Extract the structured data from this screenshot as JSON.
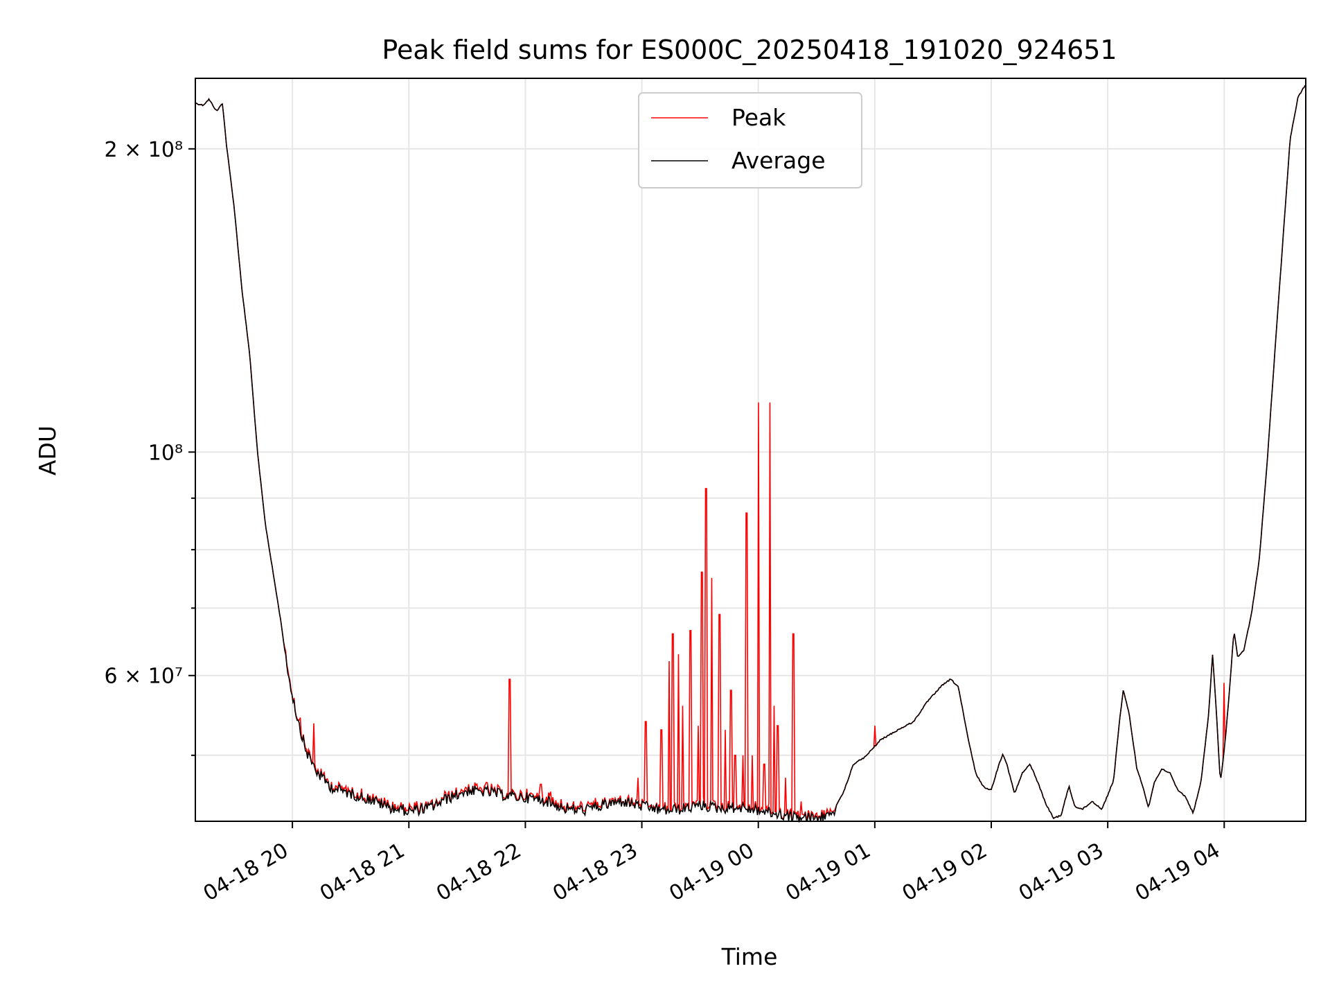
{
  "chart_data": {
    "type": "line",
    "title": "Peak field sums for ES000C_20250418_191020_924651",
    "xlabel": "Time",
    "ylabel": "ADU",
    "y_scale": "log",
    "ylim": [
      43000000,
      235000000
    ],
    "xlim": [
      "2025-04-18 19:10",
      "2025-04-19 04:42"
    ],
    "grid": true,
    "legend_position": "top-center",
    "x_ticks": [
      {
        "t": "2025-04-18 20:00",
        "label": "04-18 20"
      },
      {
        "t": "2025-04-18 21:00",
        "label": "04-18 21"
      },
      {
        "t": "2025-04-18 22:00",
        "label": "04-18 22"
      },
      {
        "t": "2025-04-18 23:00",
        "label": "04-18 23"
      },
      {
        "t": "2025-04-19 00:00",
        "label": "04-19 00"
      },
      {
        "t": "2025-04-19 01:00",
        "label": "04-19 01"
      },
      {
        "t": "2025-04-19 02:00",
        "label": "04-19 02"
      },
      {
        "t": "2025-04-19 03:00",
        "label": "04-19 03"
      },
      {
        "t": "2025-04-19 04:00",
        "label": "04-19 04"
      }
    ],
    "y_ticks": [
      {
        "v": 200000000,
        "label": "2 × 10⁸"
      },
      {
        "v": 100000000,
        "label": "10⁸"
      },
      {
        "v": 60000000,
        "label": "6 × 10⁷"
      }
    ],
    "y_minor_ticks": [
      50000000,
      70000000,
      80000000,
      90000000
    ],
    "series": [
      {
        "name": "Average",
        "color": "#000000",
        "points": [
          [
            "2025-04-18 19:10",
            222000000
          ],
          [
            "2025-04-18 19:14",
            221000000
          ],
          [
            "2025-04-18 19:17",
            224000000
          ],
          [
            "2025-04-18 19:21",
            218000000
          ],
          [
            "2025-04-18 19:24",
            222000000
          ],
          [
            "2025-04-18 19:26",
            202000000
          ],
          [
            "2025-04-18 19:30",
            175000000
          ],
          [
            "2025-04-18 19:34",
            145000000
          ],
          [
            "2025-04-18 19:38",
            125000000
          ],
          [
            "2025-04-18 19:42",
            100000000
          ],
          [
            "2025-04-18 19:46",
            85000000
          ],
          [
            "2025-04-18 19:50",
            76000000
          ],
          [
            "2025-04-18 19:54",
            68000000
          ],
          [
            "2025-04-18 19:58",
            60000000
          ],
          [
            "2025-04-18 20:02",
            55000000
          ],
          [
            "2025-04-18 20:07",
            50500000
          ],
          [
            "2025-04-18 20:13",
            48000000
          ],
          [
            "2025-04-18 20:20",
            46500000
          ],
          [
            "2025-04-18 20:30",
            45800000
          ],
          [
            "2025-04-18 20:40",
            45200000
          ],
          [
            "2025-04-18 20:50",
            44400000
          ],
          [
            "2025-04-18 21:00",
            44000000
          ],
          [
            "2025-04-18 21:10",
            44300000
          ],
          [
            "2025-04-18 21:20",
            45300000
          ],
          [
            "2025-04-18 21:30",
            46100000
          ],
          [
            "2025-04-18 21:40",
            46000000
          ],
          [
            "2025-04-18 21:50",
            45600000
          ],
          [
            "2025-04-18 22:00",
            45400000
          ],
          [
            "2025-04-18 22:10",
            45100000
          ],
          [
            "2025-04-18 22:20",
            44300000
          ],
          [
            "2025-04-18 22:30",
            44100000
          ],
          [
            "2025-04-18 22:40",
            44600000
          ],
          [
            "2025-04-18 22:50",
            45000000
          ],
          [
            "2025-04-18 23:00",
            44500000
          ],
          [
            "2025-04-18 23:10",
            44100000
          ],
          [
            "2025-04-18 23:20",
            44200000
          ],
          [
            "2025-04-18 23:30",
            44600000
          ],
          [
            "2025-04-18 23:40",
            44300000
          ],
          [
            "2025-04-18 23:50",
            44400000
          ],
          [
            "2025-04-19 00:00",
            44100000
          ],
          [
            "2025-04-19 00:10",
            43700000
          ],
          [
            "2025-04-19 00:20",
            43400000
          ],
          [
            "2025-04-19 00:30",
            43300000
          ],
          [
            "2025-04-19 00:38",
            43700000
          ],
          [
            "2025-04-19 00:44",
            46000000
          ],
          [
            "2025-04-19 00:49",
            49000000
          ],
          [
            "2025-04-19 00:55",
            49800000
          ],
          [
            "2025-04-19 01:03",
            51800000
          ],
          [
            "2025-04-19 01:12",
            53000000
          ],
          [
            "2025-04-19 01:20",
            54000000
          ],
          [
            "2025-04-19 01:27",
            56500000
          ],
          [
            "2025-04-19 01:34",
            58500000
          ],
          [
            "2025-04-19 01:39",
            59500000
          ],
          [
            "2025-04-19 01:43",
            58500000
          ],
          [
            "2025-04-19 01:48",
            52000000
          ],
          [
            "2025-04-19 01:52",
            48000000
          ],
          [
            "2025-04-19 01:56",
            46500000
          ],
          [
            "2025-04-19 02:00",
            46200000
          ],
          [
            "2025-04-19 02:04",
            49000000
          ],
          [
            "2025-04-19 02:06",
            50200000
          ],
          [
            "2025-04-19 02:08",
            49000000
          ],
          [
            "2025-04-19 02:12",
            45800000
          ],
          [
            "2025-04-19 02:16",
            48000000
          ],
          [
            "2025-04-19 02:20",
            49000000
          ],
          [
            "2025-04-19 02:24",
            47000000
          ],
          [
            "2025-04-19 02:28",
            44800000
          ],
          [
            "2025-04-19 02:32",
            43300000
          ],
          [
            "2025-04-19 02:36",
            43600000
          ],
          [
            "2025-04-19 02:40",
            46600000
          ],
          [
            "2025-04-19 02:43",
            44500000
          ],
          [
            "2025-04-19 02:47",
            44200000
          ],
          [
            "2025-04-19 02:52",
            45000000
          ],
          [
            "2025-04-19 02:57",
            44200000
          ],
          [
            "2025-04-19 03:03",
            47200000
          ],
          [
            "2025-04-19 03:06",
            54000000
          ],
          [
            "2025-04-19 03:08",
            58000000
          ],
          [
            "2025-04-19 03:11",
            55000000
          ],
          [
            "2025-04-19 03:15",
            48500000
          ],
          [
            "2025-04-19 03:18",
            46600000
          ],
          [
            "2025-04-19 03:21",
            44400000
          ],
          [
            "2025-04-19 03:24",
            47000000
          ],
          [
            "2025-04-19 03:28",
            48500000
          ],
          [
            "2025-04-19 03:32",
            48000000
          ],
          [
            "2025-04-19 03:36",
            46200000
          ],
          [
            "2025-04-19 03:40",
            45500000
          ],
          [
            "2025-04-19 03:44",
            43800000
          ],
          [
            "2025-04-19 03:48",
            47000000
          ],
          [
            "2025-04-19 03:52",
            55000000
          ],
          [
            "2025-04-19 03:54",
            63000000
          ],
          [
            "2025-04-19 03:56",
            55000000
          ],
          [
            "2025-04-19 03:58",
            47000000
          ],
          [
            "2025-04-19 04:00",
            50500000
          ],
          [
            "2025-04-19 04:01",
            53000000
          ],
          [
            "2025-04-19 04:03",
            59000000
          ],
          [
            "2025-04-19 04:05",
            66500000
          ],
          [
            "2025-04-19 04:07",
            62500000
          ],
          [
            "2025-04-19 04:10",
            63500000
          ],
          [
            "2025-04-19 04:14",
            69000000
          ],
          [
            "2025-04-19 04:18",
            78000000
          ],
          [
            "2025-04-19 04:22",
            97000000
          ],
          [
            "2025-04-19 04:26",
            125000000
          ],
          [
            "2025-04-19 04:30",
            160000000
          ],
          [
            "2025-04-19 04:34",
            205000000
          ],
          [
            "2025-04-19 04:38",
            225000000
          ],
          [
            "2025-04-19 04:42",
            232000000
          ]
        ]
      },
      {
        "name": "Peak",
        "color": "#ff0000",
        "spikes": [
          [
            "2025-04-18 20:04",
            54500000
          ],
          [
            "2025-04-18 20:11",
            53800000
          ],
          [
            "2025-04-18 21:40",
            47000000
          ],
          [
            "2025-04-18 21:52",
            59500000
          ],
          [
            "2025-04-18 22:08",
            46800000
          ],
          [
            "2025-04-18 22:13",
            46000000
          ],
          [
            "2025-04-18 22:58",
            47500000
          ],
          [
            "2025-04-18 23:02",
            54000000
          ],
          [
            "2025-04-18 23:10",
            53000000
          ],
          [
            "2025-04-18 23:14",
            62000000
          ],
          [
            "2025-04-18 23:16",
            66000000
          ],
          [
            "2025-04-18 23:19",
            63000000
          ],
          [
            "2025-04-18 23:21",
            56000000
          ],
          [
            "2025-04-18 23:25",
            66500000
          ],
          [
            "2025-04-18 23:29",
            53500000
          ],
          [
            "2025-04-18 23:31",
            76000000
          ],
          [
            "2025-04-18 23:33",
            92000000
          ],
          [
            "2025-04-18 23:36",
            75000000
          ],
          [
            "2025-04-18 23:40",
            69000000
          ],
          [
            "2025-04-18 23:43",
            53000000
          ],
          [
            "2025-04-18 23:46",
            58000000
          ],
          [
            "2025-04-18 23:48",
            50000000
          ],
          [
            "2025-04-18 23:52",
            50000000
          ],
          [
            "2025-04-18 23:54",
            87000000
          ],
          [
            "2025-04-18 23:57",
            50000000
          ],
          [
            "2025-04-19 00:00",
            112000000
          ],
          [
            "2025-04-19 00:03",
            49000000
          ],
          [
            "2025-04-19 00:06",
            112000000
          ],
          [
            "2025-04-19 00:08",
            56000000
          ],
          [
            "2025-04-19 00:10",
            53500000
          ],
          [
            "2025-04-19 00:14",
            47500000
          ],
          [
            "2025-04-19 00:18",
            66000000
          ],
          [
            "2025-04-19 00:22",
            45000000
          ],
          [
            "2025-04-19 01:00",
            53500000
          ],
          [
            "2025-04-19 04:00",
            59000000
          ]
        ]
      }
    ]
  }
}
